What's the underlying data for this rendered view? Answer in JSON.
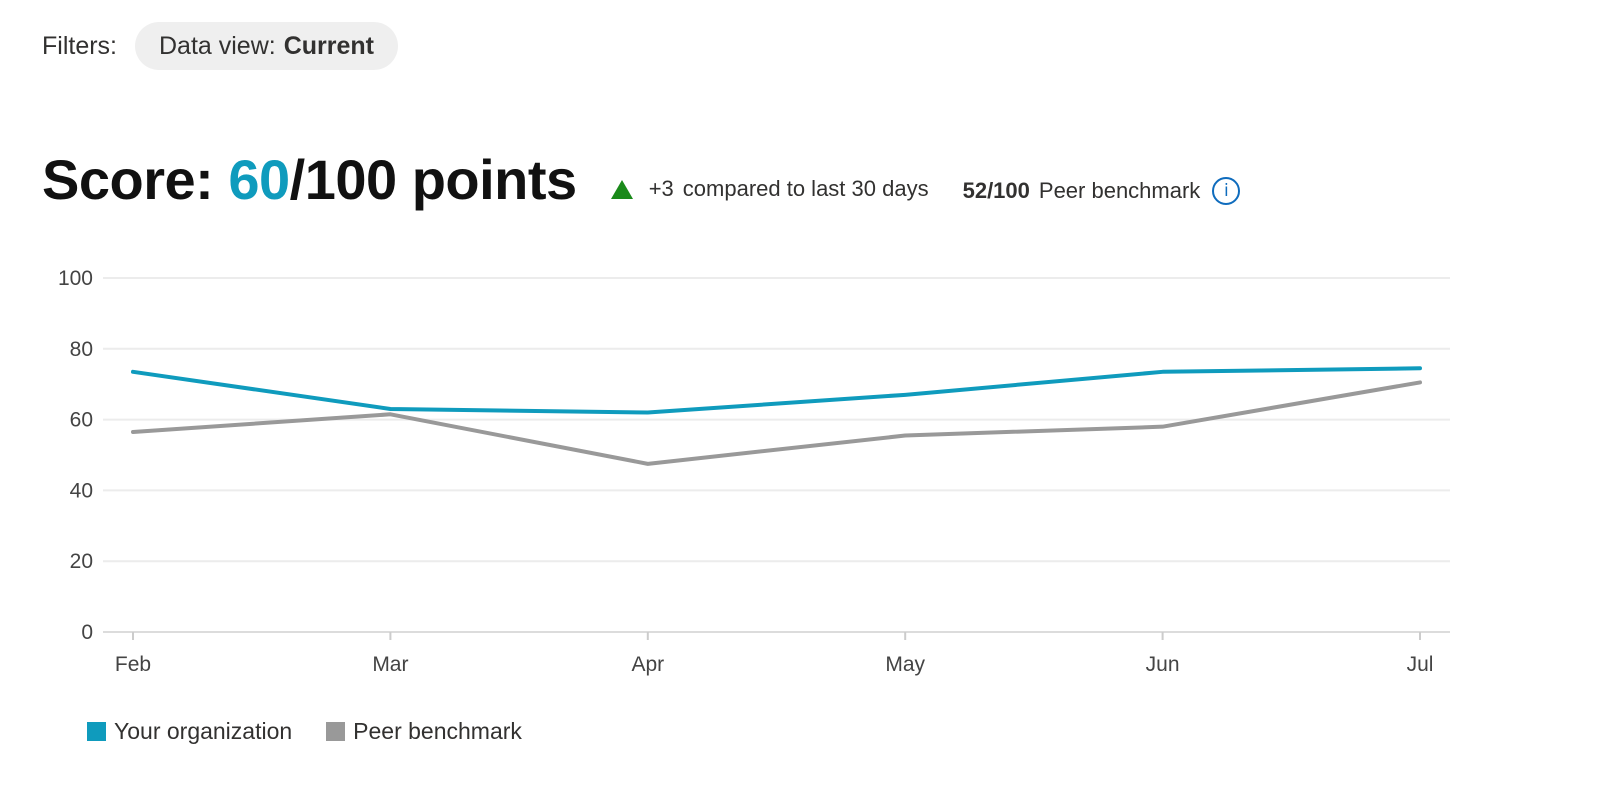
{
  "filters": {
    "label": "Filters:",
    "data_view": {
      "key": "Data view:",
      "value": "Current"
    }
  },
  "score": {
    "prefix": "Score: ",
    "value": "60",
    "suffix": "/100 points",
    "trend": {
      "delta": "+3",
      "text": "compared to last 30 days",
      "direction": "up",
      "color": "#1a8a1a"
    },
    "benchmark": {
      "value": "52/100",
      "label": "Peer benchmark"
    }
  },
  "icons": {
    "trend": "triangle-up-icon",
    "info": "info-icon",
    "info_glyph": "i"
  },
  "chart_data": {
    "type": "line",
    "categories": [
      "Feb",
      "Mar",
      "Apr",
      "May",
      "Jun",
      "Jul"
    ],
    "ylim": [
      0,
      100
    ],
    "yticks": [
      0,
      20,
      40,
      60,
      80,
      100
    ],
    "grid": true,
    "legend": "bottom-left",
    "series": [
      {
        "name": "Your organization",
        "color": "#0f9bbd",
        "values": [
          73.5,
          63,
          62,
          67,
          73.5,
          74.5
        ]
      },
      {
        "name": "Peer benchmark",
        "color": "#999999",
        "values": [
          56.5,
          61.5,
          47.5,
          55.5,
          58,
          70.5
        ]
      }
    ]
  }
}
